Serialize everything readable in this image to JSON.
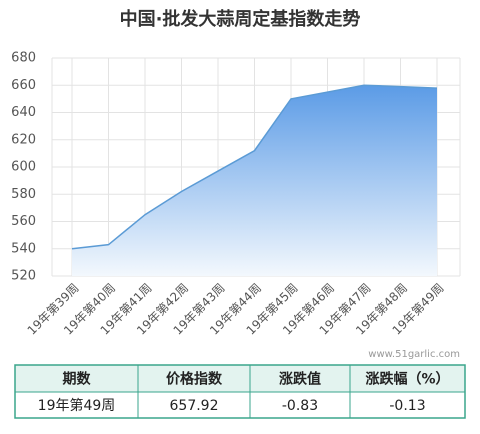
{
  "chart_data": {
    "type": "area",
    "title": "中国·批发大蒜周定基指数走势",
    "categories": [
      "19年第39周",
      "19年第40周",
      "19年第41周",
      "19年第42周",
      "19年第43周",
      "19年第44周",
      "19年第45周",
      "19年第46周",
      "19年第47周",
      "19年第48周",
      "19年第49周"
    ],
    "values": [
      540,
      543,
      565,
      582,
      597,
      612,
      650,
      655,
      660,
      659,
      657.92
    ],
    "color": "#5b9bd5",
    "ylim": [
      520,
      680
    ],
    "yticks": [
      520,
      540,
      560,
      580,
      600,
      620,
      640,
      660,
      680
    ],
    "grid": true,
    "annotation": "www.51garlic.com"
  },
  "table": {
    "header": [
      "期数",
      "价格指数",
      "涨跌值",
      "涨跌幅（%）"
    ],
    "rows": [
      [
        "19年第49周",
        657.92,
        -0.83,
        -0.13
      ]
    ]
  }
}
